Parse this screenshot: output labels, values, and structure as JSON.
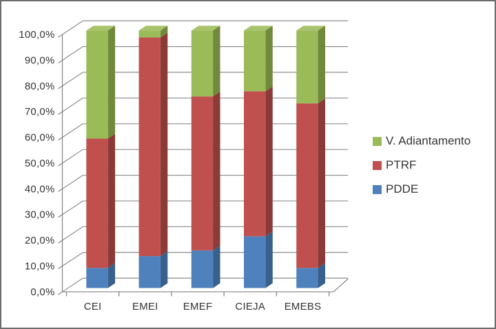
{
  "window": {
    "background": "#FFFFFF",
    "border_color": "#6B6B6B"
  },
  "chart_data": {
    "type": "bar",
    "subtype": "100%-stacked-3d-column",
    "title": "",
    "xlabel": "",
    "ylabel": "",
    "categories": [
      "CEI",
      "EMEI",
      "EMEF",
      "CIEJA",
      "EMEBS"
    ],
    "series": [
      {
        "name": "PDDE",
        "color": "#4F81BD",
        "side_color": "#38608C",
        "top_color": "#6C93C4",
        "values": [
          7.8,
          12.4,
          14.6,
          20.1,
          7.8
        ]
      },
      {
        "name": "PTRF",
        "color": "#C0504D",
        "side_color": "#8C3A38",
        "top_color": "#CC7371",
        "values": [
          50.2,
          84.9,
          59.8,
          56.3,
          63.9
        ]
      },
      {
        "name": "V. Adiantamento",
        "color": "#9BBB59",
        "side_color": "#71893C",
        "top_color": "#A9C36B",
        "values": [
          42.0,
          2.7,
          25.6,
          23.6,
          28.3
        ]
      }
    ],
    "ylim": [
      0,
      100
    ],
    "y_tick_step": 10,
    "y_ticks": [
      "100,0%",
      "90,0%",
      "80,0%",
      "70,0%",
      "60,0%",
      "50,0%",
      "40,0%",
      "30,0%",
      "20,0%",
      "10,0%",
      "0,0%"
    ],
    "grid": true,
    "grid_color": "#8C8C8C",
    "axis_color": "#808080",
    "text_color": "#333333",
    "legend": {
      "position": "right",
      "entries": [
        {
          "label": "V. Adiantamento",
          "color": "#9BBB59"
        },
        {
          "label": "PTRF",
          "color": "#C0504D"
        },
        {
          "label": "PDDE",
          "color": "#4F81BD"
        }
      ]
    }
  }
}
